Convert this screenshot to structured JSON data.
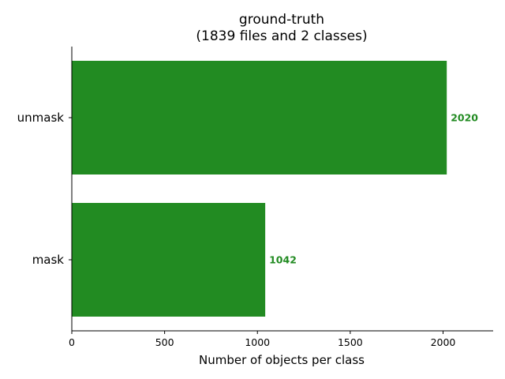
{
  "chart_data": {
    "type": "bar",
    "orientation": "horizontal",
    "title_line1": "ground-truth",
    "title_line2": "(1839 files and 2 classes)",
    "xlabel": "Number of objects per class",
    "ylabel": "",
    "categories": [
      "mask",
      "unmask"
    ],
    "values": [
      1042,
      2020
    ],
    "value_labels": [
      "1042",
      "2020"
    ],
    "xlim": [
      0,
      2270
    ],
    "xticks": [
      0,
      500,
      1000,
      1500,
      2000
    ],
    "xtick_labels": [
      "0",
      "500",
      "1000",
      "1500",
      "2000"
    ],
    "bar_color": "#228b22",
    "label_color": "#228b22",
    "grid": false,
    "legend": "none"
  }
}
